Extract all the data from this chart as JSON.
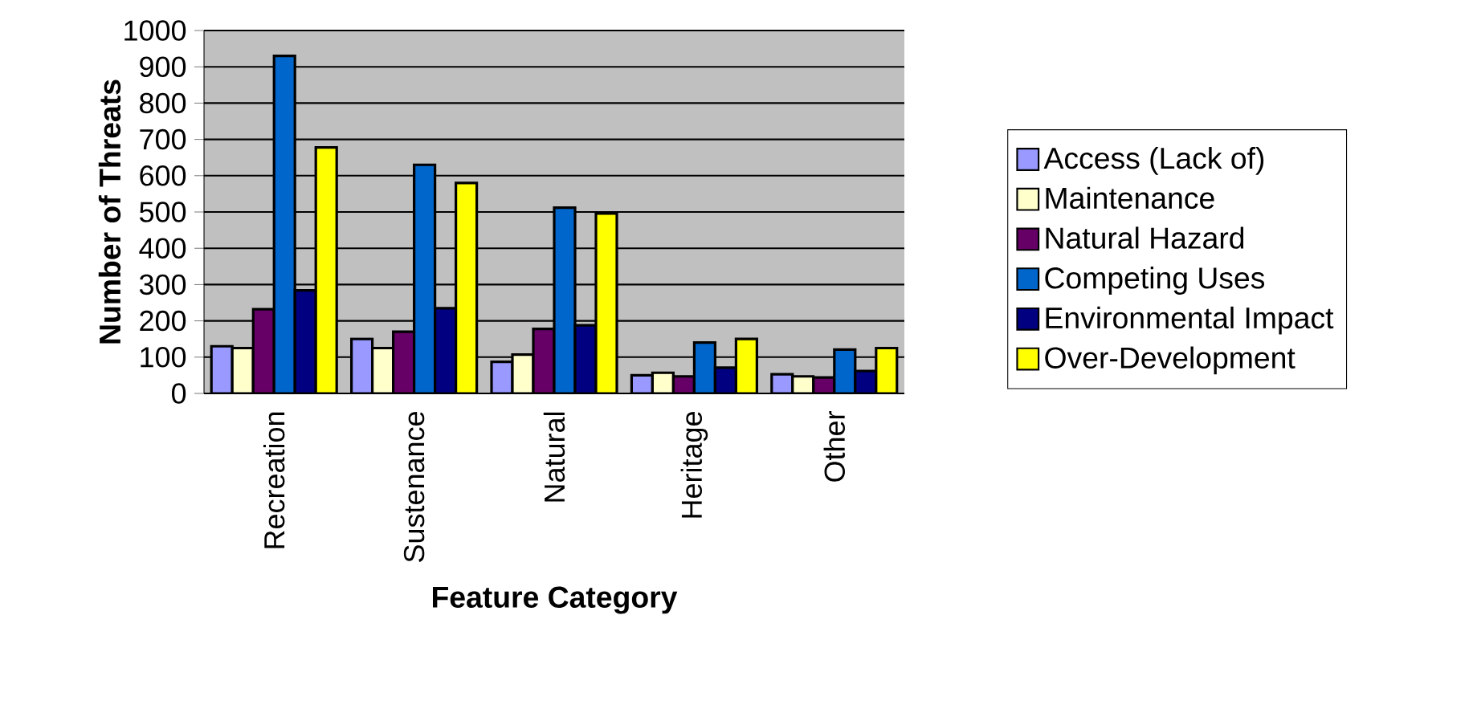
{
  "chart_data": {
    "type": "bar",
    "xlabel": "Feature Category",
    "ylabel": "Number of Threats",
    "categories": [
      "Recreation",
      "Sustenance",
      "Natural",
      "Heritage",
      "Other"
    ],
    "series": [
      {
        "name": "Access (Lack of)",
        "color": "#9999ff",
        "values": [
          130,
          150,
          87,
          50,
          53
        ]
      },
      {
        "name": "Maintenance",
        "color": "#ffffcc",
        "values": [
          125,
          125,
          107,
          57,
          47
        ]
      },
      {
        "name": "Natural Hazard",
        "color": "#660066",
        "values": [
          232,
          170,
          178,
          47,
          44
        ]
      },
      {
        "name": "Competing Uses",
        "color": "#0066cc",
        "values": [
          930,
          630,
          512,
          140,
          121
        ]
      },
      {
        "name": "Environmental Impact",
        "color": "#000080",
        "values": [
          284,
          235,
          188,
          71,
          62
        ]
      },
      {
        "name": "Over-Development",
        "color": "#ffff00",
        "values": [
          678,
          580,
          496,
          150,
          125
        ]
      }
    ],
    "ylim": [
      0,
      1000
    ],
    "yticks": [
      0,
      100,
      200,
      300,
      400,
      500,
      600,
      700,
      800,
      900,
      1000
    ],
    "grid": "y",
    "legend": "right"
  }
}
